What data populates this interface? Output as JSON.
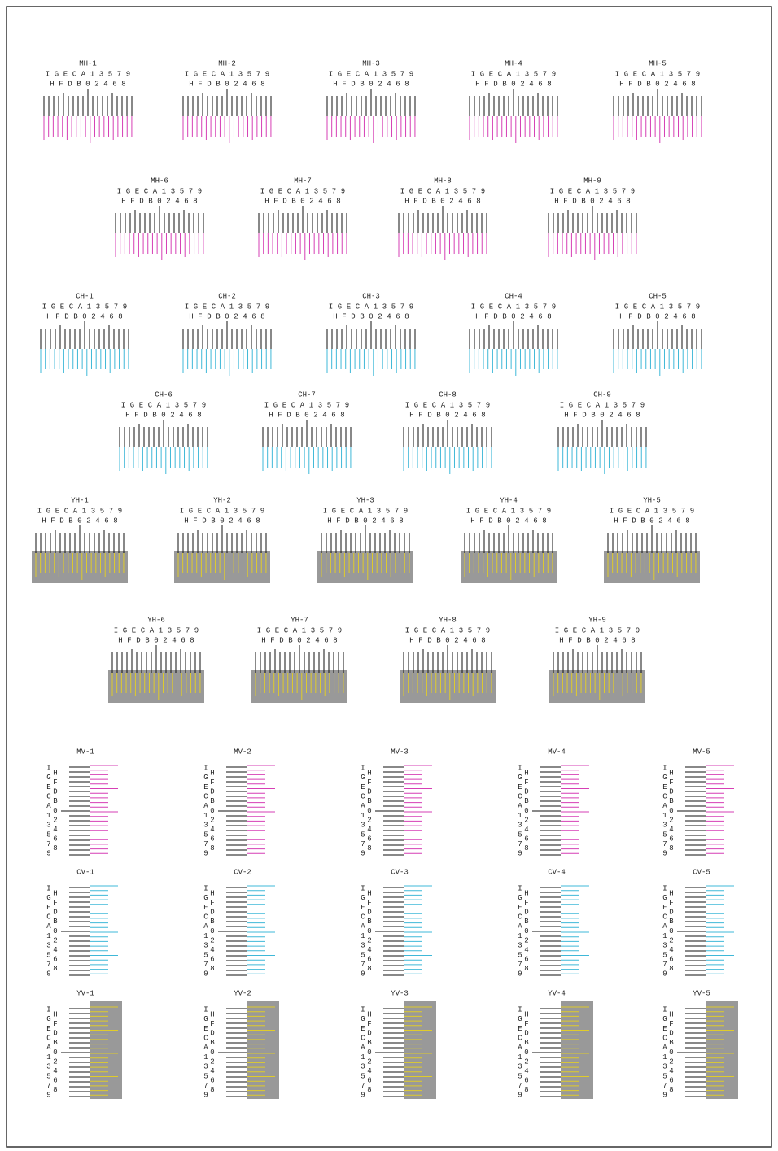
{
  "scale": {
    "odd": [
      "I",
      "G",
      "E",
      "C",
      "A",
      "1",
      "3",
      "5",
      "7",
      "9"
    ],
    "even": [
      "H",
      "F",
      "D",
      "B",
      "0",
      "2",
      "4",
      "6",
      "8"
    ]
  },
  "horizontal": [
    {
      "color": "#d63fb5",
      "labels": [
        "MH-1",
        "MH-2",
        "MH-3",
        "MH-4",
        "MH-5",
        "MH-6",
        "MH-7",
        "MH-8",
        "MH-9"
      ]
    },
    {
      "color": "#3fb8d8",
      "labels": [
        "CH-1",
        "CH-2",
        "CH-3",
        "CH-4",
        "CH-5",
        "CH-6",
        "CH-7",
        "CH-8",
        "CH-9"
      ]
    },
    {
      "color": "#e0cc2a",
      "background": "#999999",
      "labels": [
        "YH-1",
        "YH-2",
        "YH-3",
        "YH-4",
        "YH-5",
        "YH-6",
        "YH-7",
        "YH-8",
        "YH-9"
      ]
    }
  ],
  "vertical": [
    {
      "color": "#d63fb5",
      "labels": [
        "MV-1",
        "MV-2",
        "MV-3",
        "MV-4",
        "MV-5"
      ]
    },
    {
      "color": "#3fb8d8",
      "labels": [
        "CV-1",
        "CV-2",
        "CV-3",
        "CV-4",
        "CV-5"
      ]
    },
    {
      "color": "#e0cc2a",
      "background": "#999999",
      "labels": [
        "YV-1",
        "YV-2",
        "YV-3",
        "YV-4",
        "YV-5"
      ]
    }
  ]
}
